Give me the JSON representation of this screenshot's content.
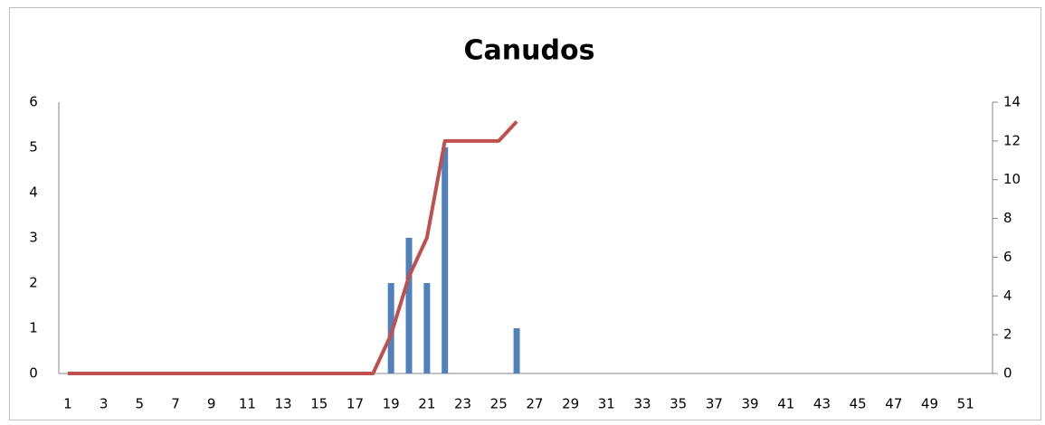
{
  "chart_data": {
    "type": "combo",
    "title": "Canudos",
    "categories": [
      1,
      null,
      3,
      null,
      5,
      null,
      7,
      null,
      9,
      null,
      11,
      null,
      13,
      null,
      15,
      null,
      17,
      null,
      19,
      null,
      21,
      null,
      23,
      null,
      25,
      null,
      27,
      null,
      29,
      null,
      31,
      null,
      33,
      null,
      35,
      null,
      37,
      null,
      39,
      null,
      41,
      null,
      43,
      null,
      45,
      null,
      47,
      null,
      49,
      null,
      51,
      null
    ],
    "series": [
      {
        "type": "bar",
        "color": "#4f81bd",
        "values": [
          0,
          0,
          0,
          0,
          0,
          0,
          0,
          0,
          0,
          0,
          0,
          0,
          0,
          0,
          0,
          0,
          0,
          0,
          2,
          3,
          2,
          5,
          0,
          0,
          0,
          1,
          null,
          null,
          null,
          null,
          null,
          null,
          null,
          null,
          null,
          null,
          null,
          null,
          null,
          null,
          null,
          null,
          null,
          null,
          null,
          null,
          null,
          null,
          null,
          null,
          null,
          null
        ]
      },
      {
        "type": "line",
        "color": "#c0504d",
        "axis": "y2",
        "values": [
          0,
          0,
          0,
          0,
          0,
          0,
          0,
          0,
          0,
          0,
          0,
          0,
          0,
          0,
          0,
          0,
          0,
          0,
          2,
          5,
          7,
          12,
          12,
          12,
          12,
          13,
          null,
          null,
          null,
          null,
          null,
          null,
          null,
          null,
          null,
          null,
          null,
          null,
          null,
          null,
          null,
          null,
          null,
          null,
          null,
          null,
          null,
          null,
          null,
          null,
          null,
          null
        ]
      }
    ],
    "ylim": [
      0,
      6
    ],
    "yticks": [
      0,
      1,
      2,
      3,
      4,
      5,
      6
    ],
    "y2lim": [
      0,
      14
    ],
    "y2ticks": [
      0,
      2,
      4,
      6,
      8,
      10,
      12,
      14
    ],
    "grid": false
  }
}
